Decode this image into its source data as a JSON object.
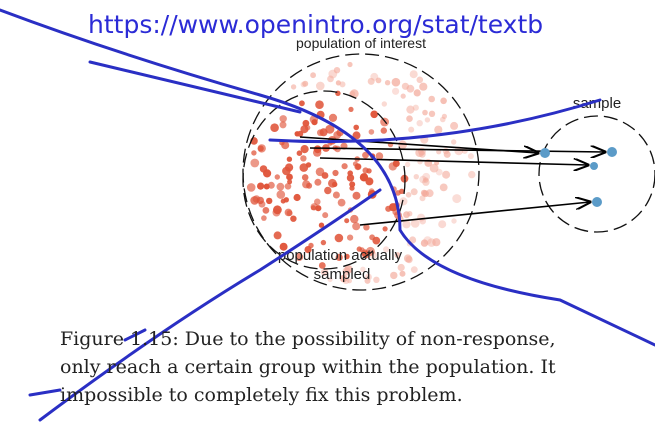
{
  "header": {
    "url": "https://www.openintro.org/stat/textb"
  },
  "figure": {
    "population_label": "population of interest",
    "sample_label": "sample",
    "sampled_label": [
      "population actually",
      "sampled"
    ]
  },
  "caption": {
    "lines": [
      "Figure 1.15: Due to the possibility of non-response,",
      "only reach a certain group within the population. It",
      "impossible to completely fix this problem."
    ]
  }
}
